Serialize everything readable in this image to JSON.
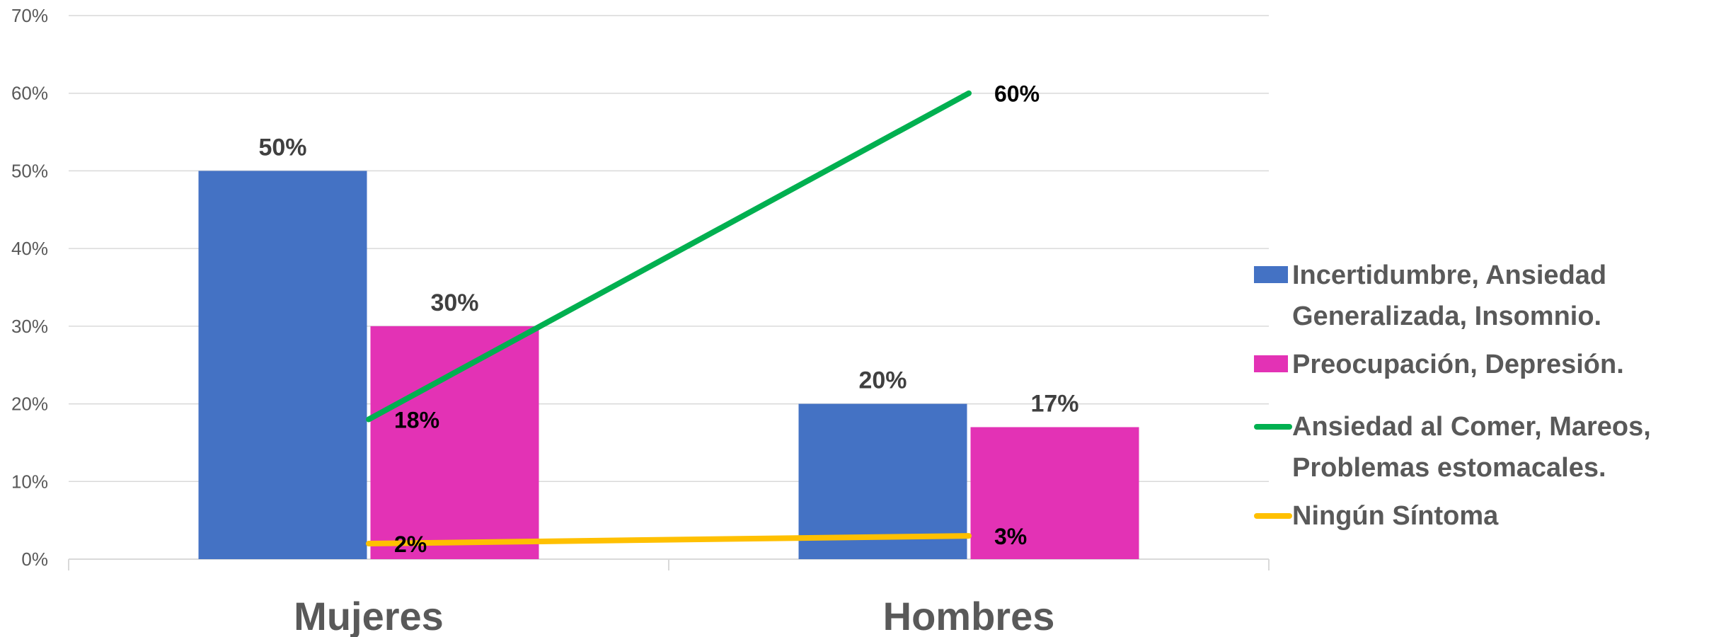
{
  "chart_data": {
    "type": "bar",
    "categories": [
      "Mujeres",
      "Hombres"
    ],
    "ylim": [
      0,
      0.7
    ],
    "yticks": [
      0,
      0.1,
      0.2,
      0.3,
      0.4,
      0.5,
      0.6,
      0.7
    ],
    "ytick_labels": [
      "0%",
      "10%",
      "20%",
      "30%",
      "40%",
      "50%",
      "60%",
      "70%"
    ],
    "grid": true,
    "legend_position": "right",
    "bar_series": [
      {
        "name": "Incertidumbre, Ansiedad Generalizada, Insomnio.",
        "name_lines": [
          "Incertidumbre, Ansiedad",
          "Generalizada, Insomnio."
        ],
        "color": "#4472C4",
        "values": [
          0.5,
          0.2
        ],
        "labels": [
          "50%",
          "20%"
        ]
      },
      {
        "name": "Preocupación, Depresión.",
        "name_lines": [
          "Preocupación, Depresión."
        ],
        "color": "#E332B5",
        "values": [
          0.3,
          0.17
        ],
        "labels": [
          "30%",
          "17%"
        ]
      }
    ],
    "line_series": [
      {
        "name": "Ansiedad al Comer, Mareos, Problemas estomacales.",
        "name_lines": [
          "Ansiedad al Comer, Mareos,",
          "Problemas estomacales."
        ],
        "color": "#00B050",
        "values": [
          0.18,
          0.6
        ],
        "labels": [
          "18%",
          "60%"
        ]
      },
      {
        "name": "Ningún Síntoma",
        "name_lines": [
          "Ningún Síntoma"
        ],
        "color": "#FFC000",
        "values": [
          0.02,
          0.03
        ],
        "labels": [
          "2%",
          "3%"
        ]
      }
    ]
  }
}
